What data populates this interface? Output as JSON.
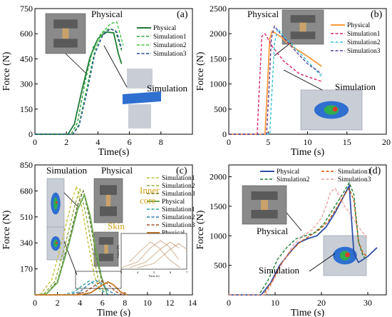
{
  "chart_data": [
    {
      "type": "line",
      "panel_label": "(a)",
      "xlabel": "Time(s)",
      "ylabel": "Force (N)",
      "xlim": [
        0,
        10
      ],
      "ylim": [
        0,
        750
      ],
      "xticks": [
        0,
        2,
        4,
        6,
        8
      ],
      "yticks": [
        0,
        150,
        300,
        450,
        600,
        750
      ],
      "legend": {
        "position": "top-right",
        "entries": [
          "Physical",
          "Simulation1",
          "Simulation2",
          "Simulation3"
        ]
      },
      "annotations": [
        {
          "text": "Physical",
          "role": "photo-caption"
        },
        {
          "text": "Simulation",
          "role": "render-caption"
        }
      ],
      "series": [
        {
          "name": "Physical",
          "color": "#1e7b34",
          "dash": "solid",
          "x": [
            0,
            2.1,
            2.5,
            3,
            3.5,
            4,
            4.5,
            5,
            5.3,
            5.5
          ],
          "y": [
            0,
            0,
            60,
            270,
            460,
            570,
            610,
            605,
            480,
            420
          ]
        },
        {
          "name": "Simulation1",
          "color": "#2e9d3f",
          "dash": "dash",
          "x": [
            0,
            2.3,
            2.7,
            3.2,
            3.7,
            4.2,
            4.7,
            5.1,
            5.5
          ],
          "y": [
            0,
            0,
            70,
            320,
            520,
            600,
            630,
            620,
            500
          ]
        },
        {
          "name": "Simulation2",
          "color": "#3ec43e",
          "dash": "dash",
          "x": [
            0,
            2.4,
            2.8,
            3.3,
            3.8,
            4.3,
            4.8,
            5.2,
            5.6
          ],
          "y": [
            0,
            0,
            60,
            280,
            500,
            610,
            660,
            670,
            530
          ]
        },
        {
          "name": "Simulation3",
          "color": "#1e4a8c",
          "dash": "dash",
          "x": [
            0,
            2.4,
            2.8,
            3.3,
            3.8,
            4.3,
            4.8,
            5.2,
            5.5
          ],
          "y": [
            0,
            0,
            50,
            250,
            480,
            590,
            630,
            610,
            510
          ]
        }
      ]
    },
    {
      "type": "line",
      "panel_label": "(b)",
      "xlabel": "Time (s)",
      "ylabel": "Force (N)",
      "xlim": [
        0,
        20
      ],
      "ylim": [
        0,
        2500
      ],
      "xticks": [
        0,
        5,
        10,
        15,
        20
      ],
      "yticks": [
        0,
        500,
        1000,
        1500,
        2000,
        2500
      ],
      "legend": {
        "position": "top-right",
        "entries": [
          "Physical",
          "Simulation1",
          "Simulation2",
          "Simulation3"
        ]
      },
      "annotations": [
        {
          "text": "Physical",
          "role": "photo-caption"
        },
        {
          "text": "Simulation",
          "role": "render-caption"
        }
      ],
      "series": [
        {
          "name": "Physical",
          "color": "#ff9a3c",
          "dash": "solid",
          "x": [
            0,
            4.6,
            4.9,
            5.2,
            5.5,
            6.5,
            8,
            10,
            11.8
          ],
          "y": [
            0,
            0,
            900,
            1900,
            2050,
            1950,
            1750,
            1550,
            1350
          ]
        },
        {
          "name": "Simulation1",
          "color": "#d6246e",
          "dash": "dash",
          "x": [
            0,
            3.6,
            3.9,
            4.2,
            4.6,
            5.5,
            7,
            9,
            11.8
          ],
          "y": [
            0,
            0,
            1000,
            1950,
            2000,
            1750,
            1450,
            1200,
            1050
          ]
        },
        {
          "name": "Simulation2",
          "color": "#35c4d4",
          "dash": "dash",
          "x": [
            0,
            5.2,
            5.5,
            5.8,
            6.2,
            7,
            8.5,
            10,
            11.8
          ],
          "y": [
            0,
            0,
            900,
            1800,
            2100,
            1950,
            1700,
            1450,
            1150
          ]
        },
        {
          "name": "Simulation3",
          "color": "#5a3e9a",
          "dash": "dash",
          "x": [
            0,
            4.8,
            5.1,
            5.4,
            5.8,
            6.8,
            8.5,
            10,
            11.8
          ],
          "y": [
            0,
            0,
            900,
            1900,
            2150,
            1950,
            1650,
            1400,
            1200
          ]
        }
      ]
    },
    {
      "type": "line",
      "panel_label": "(c)",
      "xlabel": "Time (s)",
      "ylabel": "Force (N)",
      "xlim": [
        0,
        14
      ],
      "ylim": [
        0,
        850
      ],
      "xticks": [
        0,
        2,
        4,
        6,
        8,
        10,
        12,
        14
      ],
      "yticks": [
        170,
        340,
        510,
        680,
        850
      ],
      "legend": {
        "position": "top-right",
        "entries": [
          "Simulation1",
          "Simulation2",
          "Simulation3",
          "Physical",
          "Simulation1",
          "Simulation2",
          "Simulation3",
          "Physical"
        ]
      },
      "annotations": [
        {
          "text": "Simulation",
          "role": "render-caption"
        },
        {
          "text": "Physical",
          "role": "photo-caption"
        },
        {
          "text": "Inner",
          "role": "label"
        },
        {
          "text": "core",
          "role": "label"
        },
        {
          "text": "Skin",
          "role": "label"
        }
      ],
      "inset": {
        "xticks": [
          3,
          4,
          5,
          6,
          7
        ],
        "xlabel": "Time (s)",
        "ylabel": "Force (N)"
      },
      "series": [
        {
          "name": "Simulation1",
          "group": "inner-core",
          "color": "#c9c33a",
          "dash": "dash",
          "x": [
            0,
            0.5,
            1.5,
            2.5,
            3.3,
            3.7,
            4.2,
            4.8,
            5.3,
            5.8
          ],
          "y": [
            0,
            5,
            100,
            380,
            620,
            710,
            560,
            310,
            120,
            20
          ]
        },
        {
          "name": "Simulation2",
          "group": "inner-core",
          "color": "#8fb03a",
          "dash": "dash",
          "x": [
            0,
            0.8,
            1.8,
            2.8,
            3.6,
            4.0,
            4.5,
            5.1,
            5.6,
            6.1
          ],
          "y": [
            0,
            5,
            90,
            360,
            600,
            690,
            540,
            300,
            110,
            20
          ]
        },
        {
          "name": "Simulation3",
          "group": "inner-core",
          "color": "#5e6a2a",
          "dash": "dash",
          "x": [
            0,
            1.0,
            2.0,
            3.0,
            3.8,
            4.3,
            4.8,
            5.4,
            5.9,
            6.4
          ],
          "y": [
            0,
            5,
            90,
            350,
            590,
            680,
            520,
            280,
            100,
            15
          ]
        },
        {
          "name": "Physical",
          "group": "inner-core",
          "color": "#6aa84f",
          "dash": "solid",
          "x": [
            0,
            1.0,
            2.0,
            3.0,
            3.8,
            4.4,
            4.9,
            5.4,
            5.9,
            6.4
          ],
          "y": [
            0,
            5,
            80,
            330,
            560,
            655,
            520,
            300,
            120,
            15
          ]
        },
        {
          "name": "Simulation1",
          "group": "skin",
          "color": "#2ea4a4",
          "dash": "dash",
          "x": [
            0,
            2.5,
            3.5,
            4.2,
            4.8,
            5.3,
            5.9,
            6.6
          ],
          "y": [
            0,
            0,
            20,
            60,
            90,
            70,
            30,
            0
          ]
        },
        {
          "name": "Simulation2",
          "group": "skin",
          "color": "#2a7fb0",
          "dash": "dash",
          "x": [
            0,
            3.0,
            4.0,
            4.8,
            5.4,
            5.9,
            6.5,
            7.2
          ],
          "y": [
            0,
            0,
            20,
            70,
            95,
            75,
            30,
            0
          ]
        },
        {
          "name": "Simulation3",
          "group": "skin",
          "color": "#a0522d",
          "dash": "dash",
          "x": [
            0,
            3.5,
            4.5,
            5.4,
            6.0,
            6.5,
            7.1,
            7.8
          ],
          "y": [
            0,
            0,
            20,
            65,
            90,
            70,
            25,
            0
          ]
        },
        {
          "name": "Physical",
          "group": "skin",
          "color": "#c87a2a",
          "dash": "solid",
          "x": [
            0,
            4.0,
            5.0,
            5.9,
            6.5,
            7.0,
            7.6,
            8.2
          ],
          "y": [
            0,
            0,
            15,
            60,
            85,
            65,
            20,
            0
          ]
        }
      ]
    },
    {
      "type": "line",
      "panel_label": "(d)",
      "xlabel": "Time (s)",
      "ylabel": "Force (N)",
      "xlim": [
        0,
        34
      ],
      "ylim": [
        0,
        2200
      ],
      "xticks": [
        0,
        10,
        20,
        30
      ],
      "yticks": [
        500,
        1000,
        1500,
        2000
      ],
      "legend": {
        "position": "top",
        "entries": [
          "Physical",
          "Simulation1",
          "Simulation2",
          "Simulation3"
        ]
      },
      "annotations": [
        {
          "text": "Physical",
          "role": "photo-caption"
        },
        {
          "text": "Simulation",
          "role": "render-caption"
        }
      ],
      "series": [
        {
          "name": "Physical",
          "color": "#2f4fa8",
          "dash": "solid",
          "x": [
            0,
            7,
            9,
            11,
            13,
            15,
            17,
            19,
            21,
            23,
            25,
            26,
            27,
            28,
            30,
            32
          ],
          "y": [
            0,
            0,
            200,
            500,
            700,
            880,
            950,
            1000,
            1150,
            1400,
            1700,
            1850,
            700,
            550,
            650,
            800
          ]
        },
        {
          "name": "Simulation1",
          "color": "#d35400",
          "dash": "dash",
          "x": [
            0,
            7.5,
            9.5,
            11.5,
            13.5,
            15.5,
            17.5,
            19.5,
            21.5,
            23.5,
            25,
            26,
            27,
            28,
            29,
            30
          ],
          "y": [
            0,
            0,
            250,
            550,
            750,
            900,
            1000,
            1100,
            1250,
            1500,
            1700,
            1800,
            1600,
            900,
            700,
            650
          ]
        },
        {
          "name": "Simulation2",
          "color": "#1e7b34",
          "dash": "dash",
          "x": [
            0,
            6.5,
            8.5,
            10.5,
            12.5,
            14.5,
            16.5,
            18.5,
            20.5,
            22.5,
            24.5,
            26,
            27,
            28,
            29,
            30
          ],
          "y": [
            0,
            0,
            250,
            600,
            800,
            950,
            1000,
            1050,
            1200,
            1450,
            1700,
            1900,
            1700,
            900,
            650,
            600
          ]
        },
        {
          "name": "Simulation3",
          "color": "#e8a0a0",
          "dash": "dash",
          "x": [
            0,
            8,
            10,
            12,
            14,
            16,
            18,
            20,
            21,
            22,
            23,
            24,
            25,
            26,
            28,
            30
          ],
          "y": [
            0,
            0,
            300,
            600,
            850,
            1000,
            1100,
            1300,
            1500,
            1750,
            1800,
            1650,
            1500,
            1400,
            1150,
            950
          ]
        }
      ]
    }
  ]
}
